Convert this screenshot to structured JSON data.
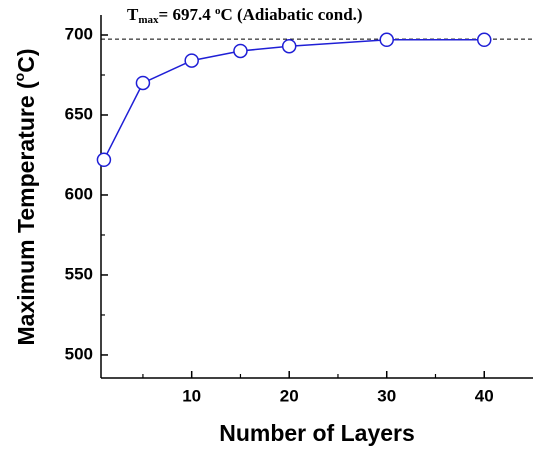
{
  "chart_data": {
    "type": "line",
    "annotation": {
      "base": "T",
      "sub": "max",
      "mid": "= 697.4 ",
      "sup": "o",
      "rest": "C (Adiabatic cond.)"
    },
    "reference_line": 697.4,
    "x_label": "Number of Layers",
    "y_label": {
      "start": "Maximum Temperature (",
      "sup": "o",
      "end": "C)"
    },
    "x": [
      1,
      5,
      10,
      15,
      20,
      30,
      40
    ],
    "series": [
      {
        "color": "#1f1fd6",
        "values": [
          622,
          670,
          684,
          690,
          693,
          697,
          697
        ]
      }
    ],
    "xlim": [
      0.7,
      45
    ],
    "ylim": [
      485.6,
      712.5
    ],
    "xticks": [
      10,
      20,
      30,
      40
    ],
    "yticks": [
      500,
      550,
      600,
      650,
      700
    ],
    "x_minor_ticks": [
      5,
      15,
      25,
      35
    ],
    "y_minor_ticks": [
      525,
      575,
      625,
      675
    ],
    "grid": false
  }
}
